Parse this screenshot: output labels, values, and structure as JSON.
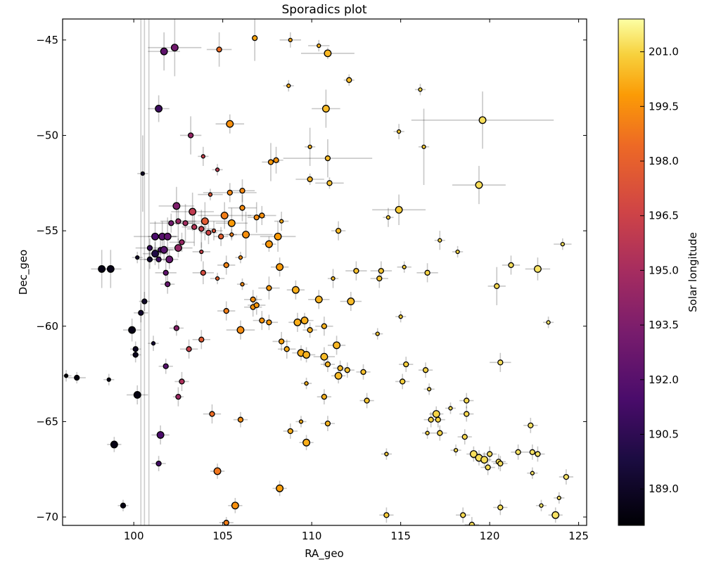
{
  "chart_data": {
    "type": "scatter",
    "title": "Sporadics plot",
    "xlabel": "RA_geo",
    "ylabel": "Dec_geo",
    "xlim": [
      96.0,
      125.45
    ],
    "ylim": [
      -70.44,
      -43.9
    ],
    "xticks": [
      100,
      105,
      110,
      115,
      120,
      125
    ],
    "yticks": [
      -45,
      -50,
      -55,
      -60,
      -65,
      -70
    ],
    "xtick_labels": [
      "100",
      "105",
      "110",
      "115",
      "120",
      "125"
    ],
    "ytick_labels": [
      "−45",
      "−50",
      "−55",
      "−60",
      "−65",
      "−70"
    ],
    "grid": false,
    "colorbar": {
      "label": "Solar longitude",
      "colormap": "inferno",
      "range": [
        188.0,
        201.9
      ],
      "ticks": [
        189.0,
        190.5,
        192.0,
        193.5,
        195.0,
        196.5,
        198.0,
        199.5,
        201.0
      ],
      "tick_labels": [
        "189.0",
        "190.5",
        "192.0",
        "193.5",
        "195.0",
        "196.5",
        "198.0",
        "199.5",
        "201.0"
      ]
    },
    "series_fields": [
      "ra",
      "dec",
      "solar_longitude",
      "size",
      "ra_err",
      "dec_err"
    ],
    "points": [
      [
        101.7,
        -45.6,
        192.3,
        2,
        0.9,
        1.0
      ],
      [
        102.3,
        -45.4,
        193.0,
        2,
        1.5,
        1.5
      ],
      [
        104.8,
        -45.5,
        198.5,
        1,
        0.7,
        0.9
      ],
      [
        106.8,
        -44.9,
        200.0,
        1,
        0.1,
        1.2
      ],
      [
        108.8,
        -45.0,
        200.0,
        0,
        0.6,
        0.4
      ],
      [
        110.4,
        -45.3,
        200.3,
        0,
        0.6,
        0.3
      ],
      [
        110.9,
        -45.7,
        200.4,
        2,
        1.5,
        0.3
      ],
      [
        108.7,
        -47.4,
        200.2,
        0,
        0.3,
        0.3
      ],
      [
        112.1,
        -47.1,
        200.5,
        1,
        0.3,
        0.3
      ],
      [
        116.1,
        -47.6,
        201.0,
        0,
        0.3,
        0.3
      ],
      [
        101.4,
        -48.6,
        191.0,
        2,
        0.6,
        0.7
      ],
      [
        110.8,
        -48.6,
        200.5,
        2,
        0.8,
        1.0
      ],
      [
        119.6,
        -49.2,
        201.2,
        2,
        4.0,
        1.5
      ],
      [
        105.4,
        -49.4,
        199.5,
        2,
        0.8,
        0.5
      ],
      [
        103.2,
        -50.0,
        194.3,
        1,
        0.6,
        1.0
      ],
      [
        114.9,
        -49.8,
        200.8,
        0,
        0.3,
        0.4
      ],
      [
        116.3,
        -50.6,
        200.8,
        0,
        0.3,
        2.0
      ],
      [
        109.9,
        -50.6,
        200.3,
        0,
        0.3,
        1.0
      ],
      [
        103.9,
        -51.1,
        196.3,
        0,
        0.3,
        0.5
      ],
      [
        110.9,
        -51.2,
        200.5,
        1,
        2.5,
        1.0
      ],
      [
        107.7,
        -51.4,
        199.7,
        1,
        0.5,
        1.0
      ],
      [
        108.0,
        -51.3,
        199.6,
        1,
        0.4,
        0.7
      ],
      [
        100.5,
        -52.0,
        189.0,
        0,
        0.3,
        2.0
      ],
      [
        104.7,
        -51.8,
        196.0,
        0,
        0.3,
        0.3
      ],
      [
        109.9,
        -52.3,
        200.3,
        1,
        0.8,
        0.3
      ],
      [
        111.0,
        -52.5,
        200.6,
        1,
        0.8,
        0.3
      ],
      [
        119.4,
        -52.6,
        201.2,
        2,
        1.5,
        1.0
      ],
      [
        106.1,
        -52.9,
        199.3,
        1,
        0.7,
        0.6
      ],
      [
        104.3,
        -53.1,
        197.5,
        0,
        0.7,
        0.3
      ],
      [
        105.4,
        -53.0,
        199.3,
        1,
        1.5,
        0.5
      ],
      [
        102.4,
        -53.7,
        193.5,
        2,
        1.0,
        1.0
      ],
      [
        103.3,
        -54.0,
        196.0,
        2,
        1.2,
        1.0
      ],
      [
        104.0,
        -54.5,
        197.7,
        2,
        1.3,
        1.0
      ],
      [
        105.1,
        -54.2,
        199.0,
        2,
        1.5,
        0.7
      ],
      [
        105.5,
        -54.6,
        199.8,
        2,
        0.9,
        0.8
      ],
      [
        106.1,
        -53.8,
        199.4,
        1,
        0.8,
        0.7
      ],
      [
        106.9,
        -54.3,
        199.4,
        1,
        0.5,
        0.8
      ],
      [
        107.2,
        -54.2,
        199.5,
        1,
        0.8,
        0.5
      ],
      [
        108.3,
        -54.5,
        200.1,
        0,
        0.4,
        0.5
      ],
      [
        114.3,
        -54.3,
        200.8,
        0,
        0.3,
        0.5
      ],
      [
        114.9,
        -53.9,
        200.8,
        2,
        1.5,
        0.8
      ],
      [
        102.1,
        -54.6,
        193.0,
        1,
        1.2,
        0.5
      ],
      [
        102.5,
        -54.5,
        194.4,
        1,
        1.0,
        1.0
      ],
      [
        102.9,
        -54.6,
        194.9,
        1,
        0.8,
        1.0
      ],
      [
        103.4,
        -54.8,
        195.6,
        1,
        0.7,
        1.0
      ],
      [
        103.8,
        -54.9,
        196.2,
        1,
        0.8,
        1.0
      ],
      [
        104.2,
        -55.1,
        196.6,
        1,
        0.5,
        0.6
      ],
      [
        104.5,
        -55.0,
        197.3,
        0,
        0.5,
        0.5
      ],
      [
        104.9,
        -55.3,
        197.9,
        1,
        0.4,
        0.5
      ],
      [
        101.2,
        -55.3,
        191.5,
        2,
        1.2,
        0.8
      ],
      [
        101.6,
        -55.3,
        192.0,
        2,
        0.8,
        0.8
      ],
      [
        101.9,
        -55.3,
        192.3,
        2,
        0.6,
        1.0
      ],
      [
        100.9,
        -55.9,
        190.8,
        1,
        0.8,
        0.5
      ],
      [
        101.5,
        -56.0,
        191.2,
        1,
        0.7,
        0.6
      ],
      [
        102.7,
        -55.6,
        194.4,
        1,
        0.7,
        0.5
      ],
      [
        103.8,
        -56.1,
        196.4,
        0,
        0.5,
        0.5
      ],
      [
        105.5,
        -55.2,
        199.0,
        0,
        0.3,
        0.3
      ],
      [
        106.3,
        -55.2,
        199.5,
        2,
        1.5,
        1.2
      ],
      [
        108.1,
        -55.3,
        199.8,
        2,
        1.0,
        0.8
      ],
      [
        111.5,
        -55.0,
        200.5,
        1,
        0.4,
        0.5
      ],
      [
        117.2,
        -55.5,
        201.0,
        0,
        0.3,
        0.5
      ],
      [
        118.2,
        -56.1,
        201.0,
        0,
        0.3,
        0.3
      ],
      [
        124.1,
        -55.7,
        201.2,
        0,
        0.5,
        0.3
      ],
      [
        100.9,
        -56.5,
        189.3,
        1,
        0.6,
        0.5
      ],
      [
        101.2,
        -56.2,
        190.0,
        2,
        0.7,
        0.6
      ],
      [
        101.4,
        -56.5,
        191.0,
        1,
        0.8,
        0.5
      ],
      [
        101.7,
        -56.0,
        192.0,
        2,
        0.6,
        0.6
      ],
      [
        102.0,
        -56.5,
        192.5,
        2,
        0.5,
        0.5
      ],
      [
        100.2,
        -56.4,
        189.1,
        0,
        0.3,
        0.3
      ],
      [
        102.5,
        -55.9,
        194.3,
        2,
        0.8,
        0.5
      ],
      [
        98.2,
        -57.0,
        188.5,
        2,
        0.6,
        1.0
      ],
      [
        98.7,
        -57.0,
        188.6,
        2,
        0.6,
        1.0
      ],
      [
        101.8,
        -57.2,
        192.3,
        1,
        0.6,
        0.6
      ],
      [
        103.9,
        -57.2,
        197.0,
        1,
        0.6,
        0.6
      ],
      [
        105.2,
        -56.8,
        199.2,
        1,
        0.5,
        0.5
      ],
      [
        108.2,
        -56.9,
        199.8,
        2,
        0.5,
        0.5
      ],
      [
        107.6,
        -55.7,
        199.7,
        2,
        0.4,
        0.4
      ],
      [
        106.0,
        -56.4,
        199.4,
        0,
        0.3,
        0.3
      ],
      [
        104.7,
        -57.5,
        198.0,
        0,
        0.4,
        0.3
      ],
      [
        111.2,
        -57.5,
        200.5,
        0,
        0.3,
        0.5
      ],
      [
        112.5,
        -57.1,
        200.6,
        1,
        0.6,
        0.5
      ],
      [
        113.9,
        -57.1,
        200.7,
        1,
        0.6,
        0.5
      ],
      [
        113.8,
        -57.5,
        200.7,
        1,
        0.5,
        0.5
      ],
      [
        115.2,
        -56.9,
        200.9,
        0,
        0.4,
        0.3
      ],
      [
        116.5,
        -57.2,
        201.0,
        1,
        0.6,
        0.5
      ],
      [
        120.4,
        -57.9,
        201.1,
        1,
        0.5,
        1.0
      ],
      [
        121.2,
        -56.8,
        201.2,
        1,
        0.5,
        0.5
      ],
      [
        122.7,
        -57.0,
        201.3,
        2,
        0.7,
        0.6
      ],
      [
        101.9,
        -57.8,
        192.5,
        1,
        0.4,
        0.5
      ],
      [
        106.1,
        -57.8,
        199.3,
        0,
        0.3,
        0.3
      ],
      [
        107.6,
        -58.0,
        199.7,
        1,
        0.6,
        0.6
      ],
      [
        106.7,
        -58.6,
        199.5,
        1,
        0.5,
        0.5
      ],
      [
        105.2,
        -59.2,
        199.0,
        1,
        0.5,
        0.5
      ],
      [
        106.7,
        -59.0,
        199.6,
        1,
        0.5,
        0.5
      ],
      [
        106.9,
        -58.9,
        199.7,
        1,
        0.5,
        0.5
      ],
      [
        109.1,
        -58.1,
        200.2,
        2,
        0.5,
        0.5
      ],
      [
        110.4,
        -58.6,
        200.3,
        2,
        0.6,
        0.5
      ],
      [
        112.2,
        -58.7,
        200.5,
        2,
        0.6,
        0.5
      ],
      [
        113.7,
        -60.4,
        200.7,
        0,
        0.3,
        0.3
      ],
      [
        115.0,
        -59.5,
        200.8,
        0,
        0.3,
        0.3
      ],
      [
        100.6,
        -58.7,
        189.0,
        1,
        0.3,
        0.5
      ],
      [
        100.4,
        -59.3,
        189.2,
        1,
        0.4,
        0.5
      ],
      [
        99.9,
        -60.2,
        188.5,
        2,
        0.5,
        0.6
      ],
      [
        107.2,
        -59.7,
        199.6,
        1,
        0.5,
        0.5
      ],
      [
        107.6,
        -59.8,
        199.7,
        1,
        0.5,
        0.4
      ],
      [
        109.2,
        -59.8,
        200.2,
        2,
        0.5,
        0.5
      ],
      [
        109.6,
        -59.7,
        200.2,
        2,
        0.5,
        0.4
      ],
      [
        110.7,
        -60.0,
        200.3,
        1,
        0.5,
        0.5
      ],
      [
        111.4,
        -61.0,
        200.4,
        2,
        0.5,
        0.5
      ],
      [
        109.9,
        -60.2,
        200.2,
        1,
        0.4,
        0.4
      ],
      [
        106.0,
        -60.2,
        199.4,
        2,
        0.8,
        0.5
      ],
      [
        103.8,
        -60.7,
        197.7,
        1,
        0.5,
        0.5
      ],
      [
        103.1,
        -61.2,
        196.3,
        1,
        0.5,
        0.5
      ],
      [
        102.4,
        -60.1,
        193.8,
        1,
        0.4,
        0.4
      ],
      [
        100.1,
        -61.2,
        188.9,
        1,
        0.3,
        0.4
      ],
      [
        100.1,
        -61.5,
        188.8,
        1,
        0.3,
        0.4
      ],
      [
        101.1,
        -60.9,
        189.5,
        0,
        0.3,
        0.4
      ],
      [
        101.8,
        -62.1,
        192.0,
        1,
        0.4,
        0.4
      ],
      [
        108.3,
        -60.8,
        199.9,
        1,
        0.5,
        0.5
      ],
      [
        108.6,
        -61.2,
        200.1,
        1,
        0.5,
        0.5
      ],
      [
        109.4,
        -61.4,
        200.2,
        2,
        0.5,
        0.4
      ],
      [
        109.7,
        -61.5,
        200.3,
        2,
        0.5,
        0.4
      ],
      [
        110.7,
        -61.6,
        200.5,
        2,
        0.6,
        0.5
      ],
      [
        110.9,
        -62.0,
        200.4,
        1,
        0.4,
        0.4
      ],
      [
        111.6,
        -62.2,
        200.5,
        1,
        0.4,
        0.4
      ],
      [
        111.5,
        -62.6,
        200.5,
        2,
        0.4,
        0.4
      ],
      [
        112.0,
        -62.3,
        200.6,
        1,
        0.4,
        0.4
      ],
      [
        112.9,
        -62.4,
        200.6,
        1,
        0.4,
        0.4
      ],
      [
        115.3,
        -62.0,
        200.9,
        1,
        0.4,
        0.4
      ],
      [
        116.4,
        -62.3,
        201.0,
        1,
        0.4,
        0.4
      ],
      [
        120.6,
        -61.9,
        201.2,
        1,
        0.6,
        0.5
      ],
      [
        123.3,
        -59.8,
        201.3,
        0,
        0.3,
        0.3
      ],
      [
        116.6,
        -63.3,
        201.0,
        0,
        0.3,
        0.3
      ],
      [
        115.1,
        -62.9,
        200.9,
        1,
        0.4,
        0.4
      ],
      [
        98.6,
        -62.8,
        188.5,
        0,
        0.3,
        0.3
      ],
      [
        96.2,
        -62.6,
        188.2,
        0,
        0.3,
        0.3
      ],
      [
        96.8,
        -62.7,
        188.3,
        1,
        0.5,
        0.3
      ],
      [
        100.2,
        -63.6,
        188.4,
        2,
        0.6,
        0.5
      ],
      [
        102.5,
        -63.7,
        194.6,
        1,
        0.3,
        0.5
      ],
      [
        102.7,
        -62.9,
        195.3,
        1,
        0.4,
        0.5
      ],
      [
        109.7,
        -63.0,
        200.2,
        0,
        0.3,
        0.3
      ],
      [
        110.7,
        -63.7,
        200.3,
        1,
        0.4,
        0.4
      ],
      [
        113.1,
        -63.9,
        200.7,
        1,
        0.4,
        0.4
      ],
      [
        118.7,
        -63.9,
        201.1,
        1,
        0.4,
        0.4
      ],
      [
        117.8,
        -64.3,
        201.1,
        0,
        0.3,
        0.3
      ],
      [
        104.4,
        -64.6,
        198.5,
        1,
        0.5,
        0.5
      ],
      [
        106.0,
        -64.9,
        199.4,
        1,
        0.4,
        0.4
      ],
      [
        110.9,
        -65.1,
        200.4,
        1,
        0.4,
        0.4
      ],
      [
        109.4,
        -65.0,
        200.2,
        0,
        0.3,
        0.3
      ],
      [
        108.8,
        -65.5,
        200.2,
        1,
        0.4,
        0.4
      ],
      [
        116.7,
        -64.9,
        201.0,
        1,
        0.4,
        0.4
      ],
      [
        117.0,
        -64.6,
        201.0,
        2,
        0.4,
        0.4
      ],
      [
        117.1,
        -64.9,
        201.0,
        1,
        0.4,
        0.4
      ],
      [
        116.5,
        -65.6,
        201.0,
        0,
        0.3,
        0.3
      ],
      [
        117.2,
        -65.6,
        201.0,
        1,
        0.4,
        0.4
      ],
      [
        118.7,
        -64.6,
        201.1,
        1,
        0.4,
        0.4
      ],
      [
        118.6,
        -65.8,
        201.1,
        1,
        0.4,
        0.4
      ],
      [
        122.3,
        -65.2,
        201.3,
        1,
        0.4,
        0.4
      ],
      [
        101.5,
        -65.7,
        191.5,
        2,
        0.5,
        0.5
      ],
      [
        98.9,
        -66.2,
        188.5,
        2,
        0.4,
        0.4
      ],
      [
        101.4,
        -67.2,
        191.2,
        1,
        0.4,
        0.4
      ],
      [
        109.7,
        -66.1,
        200.2,
        2,
        0.4,
        0.4
      ],
      [
        118.1,
        -66.5,
        201.1,
        0,
        0.3,
        0.3
      ],
      [
        119.1,
        -66.7,
        201.2,
        2,
        0.4,
        0.4
      ],
      [
        119.4,
        -66.9,
        201.2,
        2,
        0.4,
        0.4
      ],
      [
        119.7,
        -67.0,
        201.2,
        2,
        0.4,
        0.4
      ],
      [
        120.0,
        -66.7,
        201.2,
        1,
        0.4,
        0.4
      ],
      [
        120.5,
        -67.1,
        201.2,
        1,
        0.4,
        0.4
      ],
      [
        120.6,
        -67.2,
        201.2,
        1,
        0.4,
        0.4
      ],
      [
        121.6,
        -66.6,
        201.3,
        1,
        0.4,
        0.4
      ],
      [
        122.4,
        -66.6,
        201.3,
        1,
        0.4,
        0.4
      ],
      [
        122.7,
        -66.7,
        201.3,
        1,
        0.4,
        0.4
      ],
      [
        114.2,
        -66.7,
        200.8,
        0,
        0.3,
        0.3
      ],
      [
        119.9,
        -67.4,
        201.2,
        1,
        0.4,
        0.4
      ],
      [
        122.4,
        -67.7,
        201.3,
        0,
        0.3,
        0.3
      ],
      [
        124.3,
        -67.9,
        201.3,
        1,
        0.4,
        0.4
      ],
      [
        123.9,
        -69.0,
        201.3,
        0,
        0.3,
        0.3
      ],
      [
        104.7,
        -67.6,
        198.8,
        2,
        0.4,
        0.4
      ],
      [
        108.2,
        -68.5,
        199.9,
        2,
        0.4,
        0.4
      ],
      [
        99.4,
        -69.4,
        188.5,
        1,
        0.3,
        0.3
      ],
      [
        105.7,
        -69.4,
        199.5,
        2,
        0.4,
        0.4
      ],
      [
        105.2,
        -70.3,
        199.0,
        1,
        0.4,
        0.3
      ],
      [
        120.6,
        -69.5,
        201.2,
        1,
        0.4,
        0.4
      ],
      [
        122.9,
        -69.4,
        201.3,
        0,
        0.3,
        0.3
      ],
      [
        123.7,
        -69.9,
        201.3,
        2,
        0.4,
        0.4
      ],
      [
        118.5,
        -69.9,
        201.1,
        1,
        0.4,
        0.4
      ],
      [
        114.2,
        -69.9,
        200.8,
        1,
        0.4,
        0.4
      ],
      [
        119.0,
        -70.4,
        201.2,
        1,
        0.4,
        0.4
      ]
    ]
  }
}
